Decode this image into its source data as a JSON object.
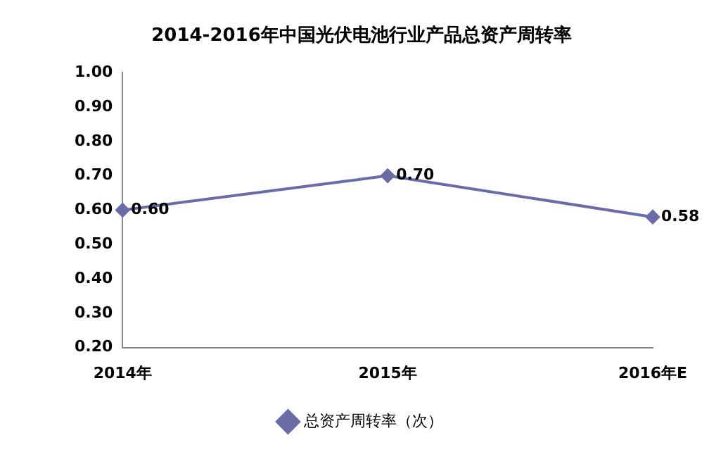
{
  "chart_data": {
    "type": "line",
    "title": "2014-2016年中国光伏电池行业产品总资产周转率",
    "categories": [
      "2014年",
      "2015年",
      "2016年E"
    ],
    "series": [
      {
        "name": "总资产周转率（次）",
        "color": "#6b6ba8",
        "values": [
          0.6,
          0.7,
          0.58
        ],
        "value_labels": [
          "0.60",
          "0.70",
          "0.58"
        ]
      }
    ],
    "ylim": [
      0.2,
      1.0
    ],
    "yticks": [
      {
        "value": 0.2,
        "label": "0.20"
      },
      {
        "value": 0.3,
        "label": "0.30"
      },
      {
        "value": 0.4,
        "label": "0.40"
      },
      {
        "value": 0.5,
        "label": "0.50"
      },
      {
        "value": 0.6,
        "label": "0.60"
      },
      {
        "value": 0.7,
        "label": "0.70"
      },
      {
        "value": 0.8,
        "label": "0.80"
      },
      {
        "value": 0.9,
        "label": "0.90"
      },
      {
        "value": 1.0,
        "label": "1.00"
      }
    ],
    "grid": false,
    "legend": "bottom",
    "marker": "diamond",
    "line_style": "solid"
  }
}
